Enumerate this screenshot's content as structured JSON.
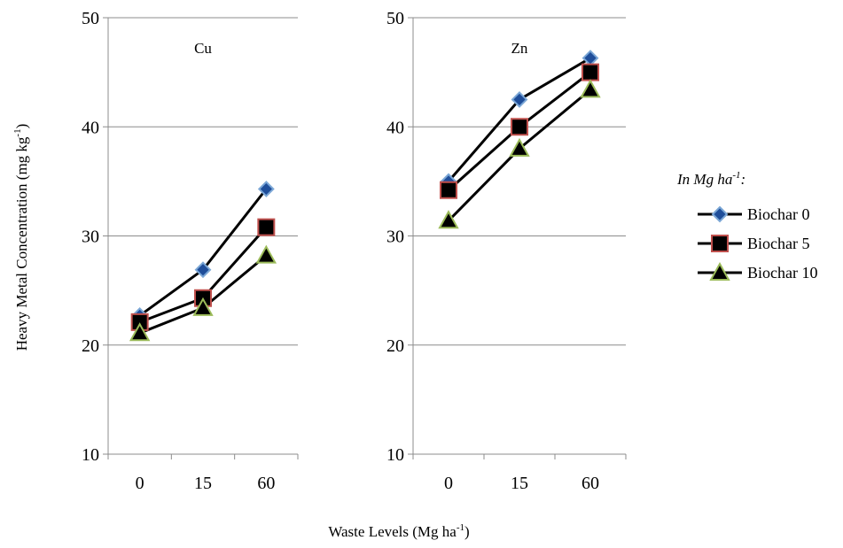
{
  "chart_data": {
    "type": "line",
    "ylabel": "Heavy Metal Concentration (mg kg",
    "ylabel_sup": "-1",
    "ylabel_tail": ")",
    "xlabel": "Waste Levels (Mg ha",
    "xlabel_sup": "-1",
    "xlabel_tail": ")",
    "categories": [
      "0",
      "15",
      "60"
    ],
    "legend": {
      "title_main": "In Mg ha",
      "title_sup": "-1",
      "title_tail": ":",
      "placement": "right"
    },
    "series_styles": [
      {
        "name": "Biochar 0",
        "marker": "diamond",
        "fill": "#1f4e9a",
        "stroke": "#7ba7d6"
      },
      {
        "name": "Biochar 5",
        "marker": "square",
        "fill": "#000000",
        "stroke": "#c0504d"
      },
      {
        "name": "Biochar 10",
        "marker": "triangle",
        "fill": "#000000",
        "stroke": "#9bbb59"
      }
    ],
    "panels": [
      {
        "title": "Cu",
        "ylim": [
          10,
          50
        ],
        "yticks": [
          10,
          20,
          30,
          40,
          50
        ],
        "grid": true,
        "series": [
          {
            "name": "Biochar 0",
            "values": [
              22.7,
              26.9,
              34.3
            ]
          },
          {
            "name": "Biochar 5",
            "values": [
              22.1,
              24.3,
              30.8
            ]
          },
          {
            "name": "Biochar 10",
            "values": [
              21.1,
              23.4,
              28.2
            ]
          }
        ]
      },
      {
        "title": "Zn",
        "ylim": [
          10,
          50
        ],
        "yticks": [
          10,
          20,
          30,
          40,
          50
        ],
        "grid": true,
        "series": [
          {
            "name": "Biochar 0",
            "values": [
              35.0,
              42.5,
              46.3
            ]
          },
          {
            "name": "Biochar 5",
            "values": [
              34.2,
              40.0,
              45.0
            ]
          },
          {
            "name": "Biochar 10",
            "values": [
              31.4,
              38.0,
              43.4
            ]
          }
        ]
      }
    ]
  }
}
